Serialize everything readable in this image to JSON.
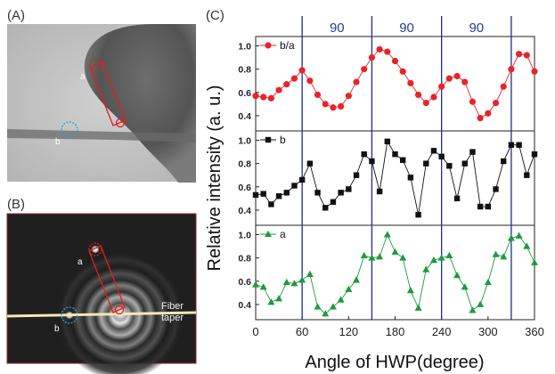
{
  "panels": {
    "a": {
      "label": "(A)",
      "spot_a": "a",
      "spot_b": "b"
    },
    "b": {
      "label": "(B)",
      "spot_a": "a",
      "spot_b": "b",
      "taper_label_1": "Fiber",
      "taper_label_2": "taper"
    },
    "c": {
      "label": "(C)"
    }
  },
  "chart_data": {
    "type": "line",
    "xlabel": "Angle of HWP(degree)",
    "ylabel": "Relative intensity (a. u.)",
    "xlim": [
      0,
      360
    ],
    "xticks": [
      "0",
      "60",
      "120",
      "180",
      "240",
      "300",
      "360"
    ],
    "yticks": [
      "0.4",
      "0.6",
      "0.8",
      "1.0"
    ],
    "ylim": [
      0.3,
      1.05
    ],
    "vertical_lines_x": [
      60,
      150,
      240,
      330
    ],
    "interval_annotations": [
      {
        "text": "90",
        "x": 105
      },
      {
        "text": "90",
        "x": 195
      },
      {
        "text": "90",
        "x": 285
      }
    ],
    "x": [
      0,
      10,
      20,
      30,
      40,
      50,
      60,
      70,
      80,
      90,
      100,
      110,
      120,
      130,
      140,
      150,
      160,
      170,
      180,
      190,
      200,
      210,
      220,
      230,
      240,
      250,
      260,
      270,
      280,
      290,
      300,
      310,
      320,
      330,
      340,
      350,
      360
    ],
    "series": [
      {
        "name": "b/a",
        "color": "#e8232a",
        "marker": "circle",
        "values": [
          0.57,
          0.56,
          0.55,
          0.62,
          0.67,
          0.72,
          0.79,
          0.7,
          0.58,
          0.5,
          0.47,
          0.48,
          0.57,
          0.69,
          0.8,
          0.9,
          0.97,
          0.95,
          0.87,
          0.78,
          0.68,
          0.58,
          0.51,
          0.56,
          0.65,
          0.72,
          0.74,
          0.69,
          0.52,
          0.38,
          0.42,
          0.51,
          0.65,
          0.8,
          0.93,
          0.92,
          0.78
        ]
      },
      {
        "name": "b",
        "color": "#111111",
        "marker": "square",
        "values": [
          0.53,
          0.54,
          0.45,
          0.52,
          0.55,
          0.61,
          0.66,
          0.8,
          0.55,
          0.42,
          0.47,
          0.55,
          0.58,
          0.7,
          0.88,
          0.82,
          0.56,
          0.99,
          0.88,
          0.83,
          0.68,
          0.36,
          0.8,
          0.91,
          0.86,
          0.78,
          0.5,
          0.8,
          0.9,
          0.43,
          0.43,
          0.58,
          0.82,
          0.96,
          0.96,
          0.7,
          0.88
        ]
      },
      {
        "name": "a",
        "color": "#1f9a3c",
        "marker": "triangle",
        "values": [
          0.57,
          0.55,
          0.42,
          0.45,
          0.59,
          0.58,
          0.61,
          0.66,
          0.38,
          0.32,
          0.38,
          0.44,
          0.53,
          0.61,
          0.82,
          0.8,
          0.81,
          1.0,
          0.85,
          0.8,
          0.52,
          0.37,
          0.7,
          0.78,
          0.8,
          0.82,
          0.65,
          0.55,
          0.35,
          0.4,
          0.59,
          0.83,
          0.81,
          0.97,
          0.99,
          0.9,
          0.76
        ]
      }
    ]
  }
}
